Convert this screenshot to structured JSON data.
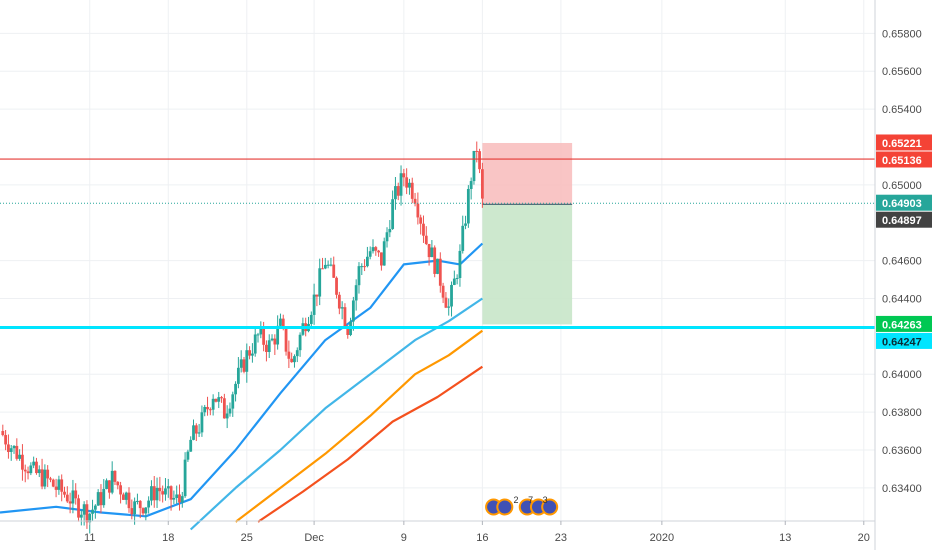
{
  "chart_data": {
    "type": "candlestick",
    "title": "",
    "xlabel": "",
    "ylabel": "",
    "ylim": [
      0.63225,
      0.65976
    ],
    "y_ticks": [
      "0.65800",
      "0.65600",
      "0.65400",
      "0.65000",
      "0.64600",
      "0.64400",
      "0.64000",
      "0.63800",
      "0.63600",
      "0.63400"
    ],
    "x_ticks": [
      {
        "label": "11",
        "day": 11
      },
      {
        "label": "18",
        "day": 18
      },
      {
        "label": "25",
        "day": 25
      },
      {
        "label": "Dec",
        "day": 31
      },
      {
        "label": "9",
        "day": 39
      },
      {
        "label": "16",
        "day": 46
      },
      {
        "label": "23",
        "day": 53
      },
      {
        "label": "2020",
        "day": 62
      },
      {
        "label": "13",
        "day": 73
      },
      {
        "label": "20",
        "day": 80
      }
    ],
    "x_range_days": [
      3,
      81
    ],
    "grid": true,
    "colors": {
      "up": "#26a69a",
      "down": "#ef5350",
      "ma_fast": "#2196f3",
      "ma_mid": "#42b6e8",
      "ma_slow": "#ff9800",
      "ma_slowest": "#f4511e",
      "resistance": "#e53935",
      "support": "#00e5ff",
      "stop_zone": "#f8bbbb",
      "target_zone": "#c8e6c9",
      "last_price": "#26a69a"
    },
    "price_labels": [
      {
        "value": "0.65221",
        "kind": "stop",
        "color": "#f44336"
      },
      {
        "value": "0.65136",
        "kind": "resistance",
        "color": "#f44336"
      },
      {
        "value": "0.64903",
        "kind": "last-price",
        "color": "#26a69a"
      },
      {
        "value": "0.64897",
        "kind": "entry",
        "color": "#424242"
      },
      {
        "value": "0.64263",
        "kind": "target",
        "color": "#00c853"
      },
      {
        "value": "0.64247",
        "kind": "support",
        "color": "#00e5ff"
      }
    ],
    "horizontal_lines": [
      {
        "name": "resistance",
        "y": 0.65136
      },
      {
        "name": "support",
        "y": 0.64247
      },
      {
        "name": "last-price",
        "y": 0.64903
      }
    ],
    "position": {
      "type": "short",
      "entry": 0.64897,
      "stop": 0.65221,
      "target": 0.64263,
      "start_day": 46,
      "end_day": 54
    },
    "price_series_close": [
      [
        3,
        0.637
      ],
      [
        4,
        0.6362
      ],
      [
        5,
        0.6355
      ],
      [
        6,
        0.6348
      ],
      [
        7,
        0.6345
      ],
      [
        8,
        0.634
      ],
      [
        9,
        0.6336
      ],
      [
        10,
        0.633
      ],
      [
        11,
        0.6327
      ],
      [
        12,
        0.6335
      ],
      [
        13,
        0.6345
      ],
      [
        14,
        0.6338
      ],
      [
        15,
        0.633
      ],
      [
        16,
        0.6332
      ],
      [
        17,
        0.634
      ],
      [
        18,
        0.6335
      ],
      [
        19,
        0.6333
      ],
      [
        20,
        0.6365
      ],
      [
        21,
        0.6375
      ],
      [
        22,
        0.639
      ],
      [
        23,
        0.638
      ],
      [
        24,
        0.6395
      ],
      [
        25,
        0.641
      ],
      [
        26,
        0.642
      ],
      [
        27,
        0.6415
      ],
      [
        28,
        0.6425
      ],
      [
        29,
        0.6405
      ],
      [
        30,
        0.6425
      ],
      [
        31,
        0.644
      ],
      [
        32,
        0.646
      ],
      [
        33,
        0.6445
      ],
      [
        34,
        0.6425
      ],
      [
        35,
        0.6455
      ],
      [
        36,
        0.6465
      ],
      [
        37,
        0.646
      ],
      [
        38,
        0.649
      ],
      [
        39,
        0.6505
      ],
      [
        40,
        0.6495
      ],
      [
        41,
        0.647
      ],
      [
        42,
        0.6455
      ],
      [
        43,
        0.6435
      ],
      [
        44,
        0.6462
      ],
      [
        45,
        0.6505
      ],
      [
        45.5,
        0.652
      ],
      [
        46,
        0.64903
      ]
    ],
    "moving_averages": [
      {
        "name": "ma_fast",
        "points": [
          [
            3,
            0.6327
          ],
          [
            8,
            0.633
          ],
          [
            12,
            0.6327
          ],
          [
            16,
            0.6325
          ],
          [
            20,
            0.6334
          ],
          [
            24,
            0.636
          ],
          [
            28,
            0.639
          ],
          [
            32,
            0.6418
          ],
          [
            36,
            0.6435
          ],
          [
            39,
            0.6458
          ],
          [
            42,
            0.646
          ],
          [
            44,
            0.6458
          ],
          [
            46,
            0.6469
          ]
        ]
      },
      {
        "name": "ma_mid",
        "points": [
          [
            20,
            0.6318
          ],
          [
            24,
            0.634
          ],
          [
            28,
            0.636
          ],
          [
            32,
            0.6382
          ],
          [
            36,
            0.64
          ],
          [
            40,
            0.6418
          ],
          [
            43,
            0.6428
          ],
          [
            46,
            0.644
          ]
        ]
      },
      {
        "name": "ma_slow",
        "points": [
          [
            24,
            0.6322
          ],
          [
            28,
            0.634
          ],
          [
            32,
            0.6358
          ],
          [
            36,
            0.6378
          ],
          [
            40,
            0.64
          ],
          [
            43,
            0.641
          ],
          [
            46,
            0.6423
          ]
        ]
      },
      {
        "name": "ma_slowest",
        "points": [
          [
            26,
            0.6322
          ],
          [
            30,
            0.6338
          ],
          [
            34,
            0.6355
          ],
          [
            38,
            0.6375
          ],
          [
            42,
            0.6388
          ],
          [
            46,
            0.6404
          ]
        ]
      }
    ],
    "event_markers": [
      {
        "day": 47
      },
      {
        "day": 48
      },
      {
        "day": 50
      },
      {
        "day": 51
      },
      {
        "day": 52
      }
    ],
    "event_marker_counts": [
      "2",
      "7",
      "3"
    ]
  }
}
